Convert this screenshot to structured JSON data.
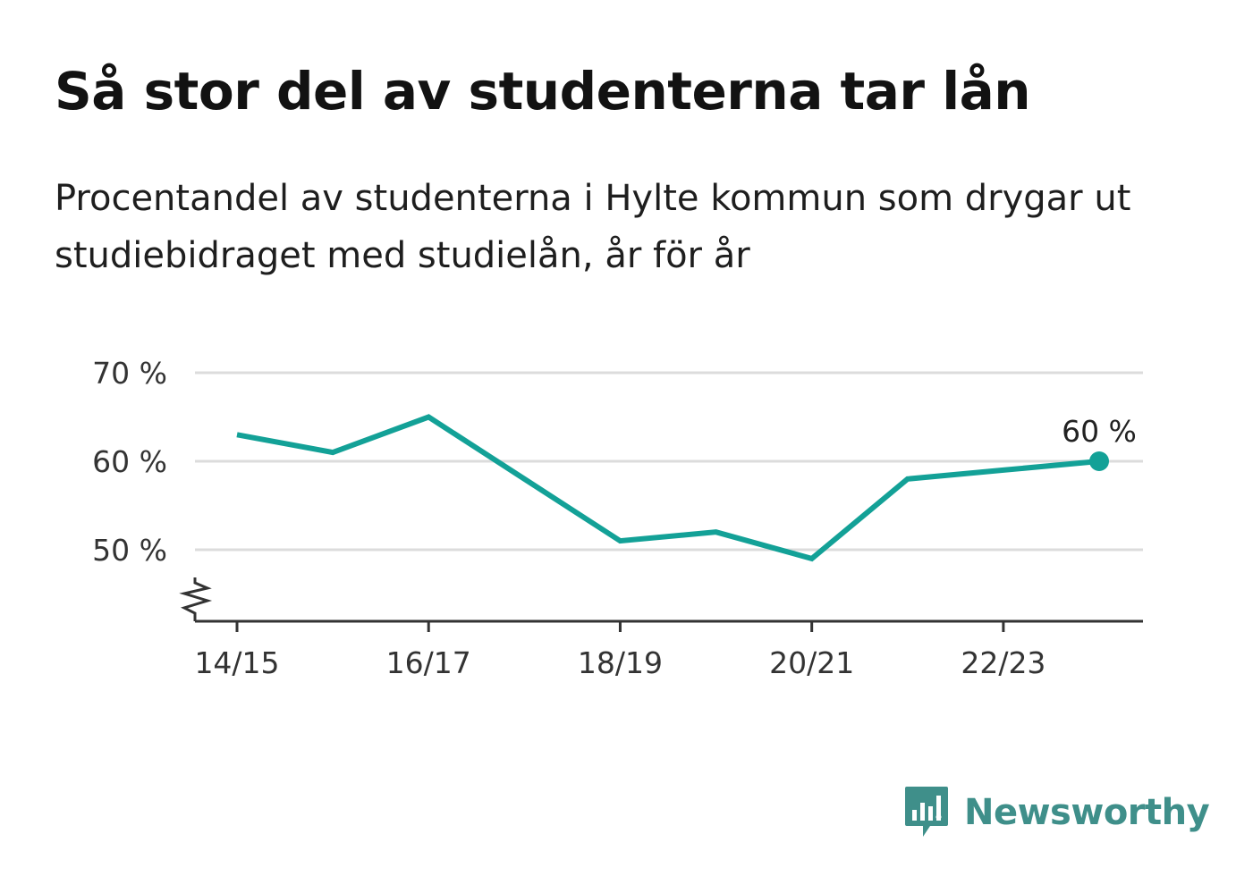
{
  "chart_data": {
    "type": "line",
    "title": "Så stor del av studenterna tar lån",
    "subtitle": "Procentandel av studenterna i Hylte kommun som drygar ut studiebidraget med studielån, år för år",
    "x": [
      "14/15",
      "15/16",
      "16/17",
      "17/18",
      "18/19",
      "19/20",
      "20/21",
      "21/22",
      "22/23",
      "23/24"
    ],
    "x_tick_labels": [
      "14/15",
      "16/17",
      "18/19",
      "20/21",
      "22/23"
    ],
    "series": [
      {
        "values": [
          63,
          61,
          65,
          58,
          51,
          52,
          49,
          58,
          59,
          60
        ]
      }
    ],
    "y_ticks": [
      50,
      60,
      70
    ],
    "y_tick_labels": [
      "50 %",
      "60 %",
      "70 %"
    ],
    "ylim": [
      42,
      70
    ],
    "grid": true,
    "axis_break": true,
    "last_value_label": "60 %",
    "colors": {
      "line": "#13a197",
      "grid": "#dcdcdc",
      "axis": "#333333"
    }
  },
  "brand": {
    "name": "Newsworthy",
    "color": "#3f8f8a",
    "icon": "newsworthy-logo-icon"
  }
}
